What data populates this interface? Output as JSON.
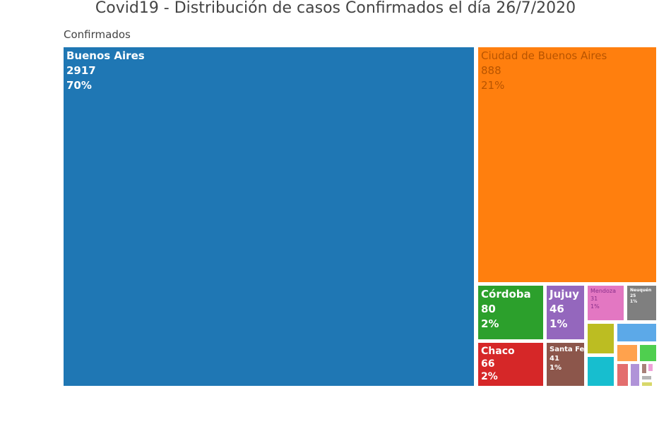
{
  "chart_data": {
    "type": "treemap",
    "title": "Covid19 - Distribución de casos Confirmados el día 26/7/2020",
    "root_label": "Confirmados",
    "items": [
      {
        "name": "Buenos Aires",
        "value": 2917,
        "pct": "70%",
        "color": "#1f77b4"
      },
      {
        "name": "Ciudad de Buenos Aires",
        "value": 888,
        "pct": "21%",
        "color": "#ff7f0e"
      },
      {
        "name": "Córdoba",
        "value": 80,
        "pct": "2%",
        "color": "#2ca02c"
      },
      {
        "name": "Chaco",
        "value": 66,
        "pct": "2%",
        "color": "#d62728"
      },
      {
        "name": "Jujuy",
        "value": 46,
        "pct": "1%",
        "color": "#9467bd"
      },
      {
        "name": "Santa Fe",
        "value": 41,
        "pct": "1%",
        "color": "#8c564b"
      },
      {
        "name": "Mendoza",
        "value": 31,
        "pct": "1%",
        "color": "#e377c2"
      },
      {
        "name": "Neuquén",
        "value": 25,
        "pct": "1%",
        "color": "#7f7f7f"
      }
    ],
    "minor_colors": [
      "#bcbd22",
      "#17becf",
      "#5ca9e8",
      "#ffa24d",
      "#4fcf4f",
      "#e36e6e",
      "#b093d8",
      "#a88078",
      "#efa0d8",
      "#b5b5b5",
      "#d8d86a"
    ]
  }
}
